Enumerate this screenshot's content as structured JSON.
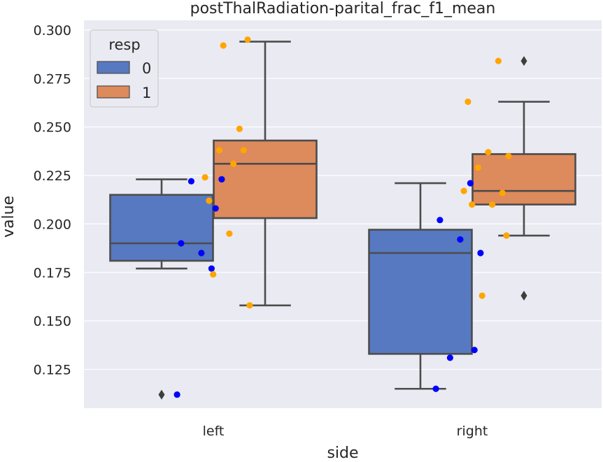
{
  "chart_data": {
    "type": "box",
    "title": "postThalRadiation-parital_frac_f1_mean",
    "xlabel": "side",
    "ylabel": "value",
    "categories": [
      "left",
      "right"
    ],
    "ylim": [
      0.105,
      0.305
    ],
    "yticks": [
      "0.125",
      "0.150",
      "0.175",
      "0.200",
      "0.225",
      "0.250",
      "0.275",
      "0.300"
    ],
    "grid": true,
    "legend": {
      "title": "resp",
      "position": "top-left",
      "entries": [
        {
          "label": "0",
          "color": "#5779c1"
        },
        {
          "label": "1",
          "color": "#dd8a5c"
        }
      ]
    },
    "series": [
      {
        "name": "0",
        "color": "#5779c1",
        "point_color": "#0000ff",
        "boxes": [
          {
            "category": "left",
            "whisker_low": 0.177,
            "q1": 0.181,
            "median": 0.19,
            "q3": 0.215,
            "whisker_high": 0.223,
            "outliers": [
              0.112
            ]
          },
          {
            "category": "right",
            "whisker_low": 0.115,
            "q1": 0.133,
            "median": 0.185,
            "q3": 0.197,
            "whisker_high": 0.221,
            "outliers": []
          }
        ],
        "points": [
          {
            "category": "left",
            "values": [
              0.177,
              0.19,
              0.185,
              0.223,
              0.222,
              0.208,
              0.112
            ]
          },
          {
            "category": "right",
            "values": [
              0.221,
              0.202,
              0.192,
              0.185,
              0.131,
              0.135,
              0.115
            ]
          }
        ]
      },
      {
        "name": "1",
        "color": "#dd8a5c",
        "point_color": "#ffa500",
        "boxes": [
          {
            "category": "left",
            "whisker_low": 0.158,
            "q1": 0.203,
            "median": 0.231,
            "q3": 0.243,
            "whisker_high": 0.294,
            "outliers": []
          },
          {
            "category": "right",
            "whisker_low": 0.194,
            "q1": 0.21,
            "median": 0.217,
            "q3": 0.236,
            "whisker_high": 0.263,
            "outliers": [
              0.284,
              0.163
            ]
          }
        ],
        "points": [
          {
            "category": "left",
            "values": [
              0.249,
              0.212,
              0.195,
              0.158,
              0.238,
              0.238,
              0.224,
              0.231,
              0.174,
              0.295,
              0.292
            ]
          },
          {
            "category": "right",
            "values": [
              0.284,
              0.263,
              0.237,
              0.235,
              0.229,
              0.216,
              0.217,
              0.21,
              0.21,
              0.194,
              0.163
            ]
          }
        ]
      }
    ]
  }
}
